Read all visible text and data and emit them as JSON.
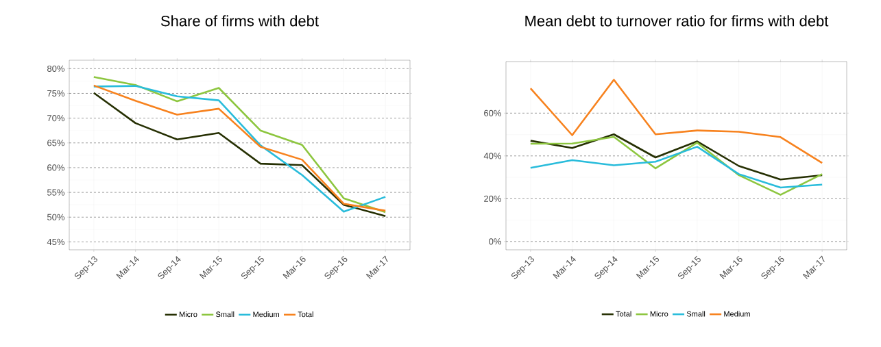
{
  "chart_data": [
    {
      "type": "line",
      "title": "Share of firms with debt",
      "categories": [
        "Sep-13",
        "Mar-14",
        "Sep-14",
        "Mar-15",
        "Sep-15",
        "Mar-16",
        "Sep-16",
        "Mar-17"
      ],
      "series": [
        {
          "name": "Micro",
          "color": "#263003",
          "values": [
            75.1,
            69.0,
            65.7,
            67.0,
            60.8,
            60.5,
            52.5,
            50.2
          ]
        },
        {
          "name": "Small",
          "color": "#8dc63f",
          "values": [
            78.3,
            76.7,
            73.4,
            76.1,
            67.5,
            64.6,
            53.8,
            51.0
          ]
        },
        {
          "name": "Medium",
          "color": "#29bcdb",
          "values": [
            76.4,
            76.5,
            74.4,
            73.6,
            64.5,
            58.5,
            51.1,
            54.1
          ]
        },
        {
          "name": "Total",
          "color": "#f7821e",
          "values": [
            76.6,
            73.5,
            70.7,
            71.9,
            64.2,
            61.6,
            52.7,
            51.3
          ]
        }
      ],
      "ylim": [
        43.4,
        81.7
      ],
      "yticks": [
        {
          "value": 45,
          "label": "45%"
        },
        {
          "value": 50,
          "label": "50%"
        },
        {
          "value": 55,
          "label": "55%"
        },
        {
          "value": 60,
          "label": "60%"
        },
        {
          "value": 65,
          "label": "65%"
        },
        {
          "value": 70,
          "label": "70%"
        },
        {
          "value": 75,
          "label": "75%"
        },
        {
          "value": 80,
          "label": "80%"
        }
      ],
      "grid": true,
      "legend": "bottom",
      "line_style": "solid"
    },
    {
      "type": "line",
      "title": "Mean debt to turnover ratio for firms with debt",
      "categories": [
        "Sep-13",
        "Mar-14",
        "Sep-14",
        "Mar-15",
        "Sep-15",
        "Mar-16",
        "Sep-16",
        "Mar-17"
      ],
      "series": [
        {
          "name": "Total",
          "color": "#263003",
          "values": [
            47.1,
            43.7,
            50.1,
            39.3,
            46.8,
            35.3,
            29.0,
            31.0
          ]
        },
        {
          "name": "Micro",
          "color": "#8dc63f",
          "values": [
            45.7,
            45.8,
            48.9,
            34.2,
            46.2,
            31.0,
            21.8,
            31.5
          ]
        },
        {
          "name": "Small",
          "color": "#29bcdb",
          "values": [
            34.4,
            38.0,
            35.6,
            37.3,
            44.3,
            31.5,
            25.2,
            26.6
          ]
        },
        {
          "name": "Medium",
          "color": "#f7821e",
          "values": [
            71.6,
            49.7,
            75.6,
            50.1,
            51.9,
            51.3,
            48.8,
            36.7
          ]
        }
      ],
      "ylim": [
        -3.9,
        84.1
      ],
      "yticks": [
        {
          "value": 0,
          "label": "0%"
        },
        {
          "value": 20,
          "label": "20%"
        },
        {
          "value": 40,
          "label": "40%"
        },
        {
          "value": 60,
          "label": "60%"
        }
      ],
      "grid": true,
      "legend": "bottom",
      "line_style": "solid"
    }
  ]
}
